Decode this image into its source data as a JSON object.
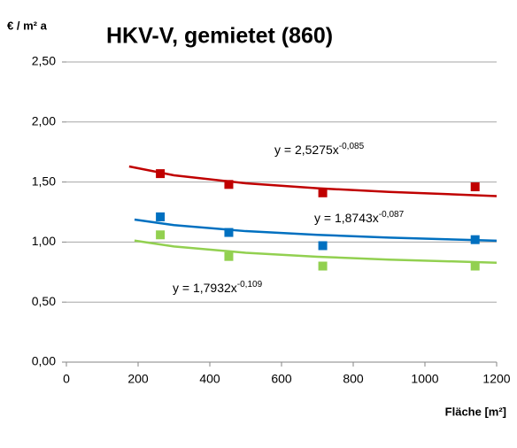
{
  "chart_data": {
    "type": "scatter",
    "title": "HKV-V,  gemietet (860)",
    "y_label": "€ / m² a",
    "x_label": "Fläche [m²]",
    "xlim": [
      0,
      1200
    ],
    "xticks": [
      0,
      200,
      400,
      600,
      800,
      1000,
      1200
    ],
    "ylim": [
      0,
      2.5
    ],
    "yticks": [
      {
        "value": 0,
        "label": "0,00"
      },
      {
        "value": 0.5,
        "label": "0,50"
      },
      {
        "value": 1,
        "label": "1,00"
      },
      {
        "value": 1.5,
        "label": "1,50"
      },
      {
        "value": 2,
        "label": "2,00"
      },
      {
        "value": 2.5,
        "label": "2,50"
      }
    ],
    "grid": true,
    "series": [
      {
        "color": "#c00000",
        "x": [
          262,
          453,
          715,
          1140
        ],
        "values": [
          1.57,
          1.48,
          1.41,
          1.46
        ]
      },
      {
        "color": "#0070c0",
        "x": [
          262,
          453,
          715,
          1140
        ],
        "values": [
          1.21,
          1.08,
          0.97,
          1.02
        ]
      },
      {
        "color": "#92d050",
        "x": [
          262,
          453,
          715,
          1140
        ],
        "values": [
          1.06,
          0.88,
          0.8,
          0.8
        ]
      }
    ],
    "trendlines": [
      {
        "color": "#c00000",
        "x": [
          175,
          300,
          500,
          700,
          900,
          1200
        ],
        "values": [
          1.63,
          1.556,
          1.49,
          1.448,
          1.418,
          1.383
        ],
        "equation": "y = 2,5275x",
        "exponent": "-0,085"
      },
      {
        "color": "#0070c0",
        "x": [
          190,
          300,
          500,
          700,
          900,
          1200
        ],
        "values": [
          1.187,
          1.141,
          1.091,
          1.06,
          1.037,
          1.011
        ],
        "equation": "y = 1,8743x",
        "exponent": "-0,087"
      },
      {
        "color": "#92d050",
        "x": [
          190,
          300,
          500,
          700,
          900,
          1200
        ],
        "values": [
          1.012,
          0.963,
          0.911,
          0.878,
          0.854,
          0.828
        ],
        "equation": "y = 1,7932x",
        "exponent": "-0,109"
      }
    ]
  }
}
